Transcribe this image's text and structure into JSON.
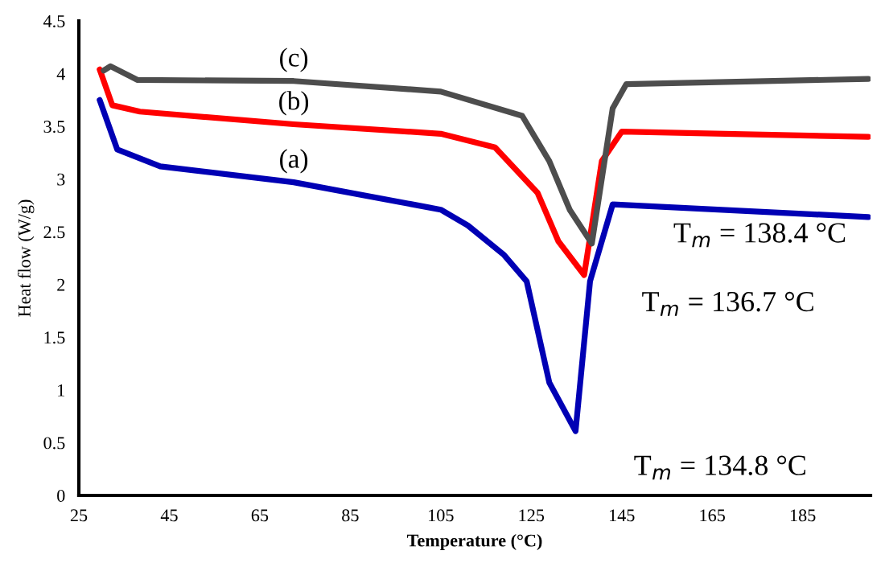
{
  "chart_data": {
    "type": "line",
    "xlabel": "Temperature (°C)",
    "ylabel": "Heat flow (W/g)",
    "xlim": [
      25,
      200
    ],
    "ylim": [
      0,
      4.5
    ],
    "xticks": [
      25,
      45,
      65,
      85,
      105,
      125,
      145,
      165,
      185
    ],
    "yticks": [
      0,
      0.5,
      1,
      1.5,
      2,
      2.5,
      3,
      3.5,
      4,
      4.5
    ],
    "grid": false,
    "legend": false,
    "marker": "none",
    "line_style": "solid",
    "series": [
      {
        "name": "(a)",
        "color": "#0000b4",
        "x": [
          29.6,
          33.5,
          43,
          72.5,
          105,
          111,
          119,
          124,
          129,
          134.8,
          138,
          143,
          199.5
        ],
        "values": [
          3.75,
          3.28,
          3.12,
          2.97,
          2.71,
          2.56,
          2.28,
          2.03,
          1.07,
          0.61,
          2.03,
          2.76,
          2.64
        ]
      },
      {
        "name": "(b)",
        "color": "#ff0000",
        "x": [
          29.6,
          32.4,
          38.5,
          72.5,
          105,
          117,
          126.4,
          131,
          136.7,
          140.6,
          145,
          199.5
        ],
        "values": [
          4.04,
          3.7,
          3.64,
          3.52,
          3.43,
          3.3,
          2.87,
          2.41,
          2.09,
          3.17,
          3.45,
          3.4
        ]
      },
      {
        "name": "(c)",
        "color": "#4d4d4d",
        "x": [
          30.5,
          32,
          38,
          72.5,
          105,
          123,
          129,
          133.5,
          138.4,
          143,
          146,
          199.5
        ],
        "values": [
          4.03,
          4.07,
          3.94,
          3.93,
          3.83,
          3.6,
          3.17,
          2.71,
          2.39,
          3.67,
          3.9,
          3.95
        ]
      }
    ],
    "annotations": [
      "T$_{m}$ = 138.4 °C",
      "T$_{m}$ = 136.7 °C",
      "T$_{m}$ = 134.8 °C"
    ]
  }
}
